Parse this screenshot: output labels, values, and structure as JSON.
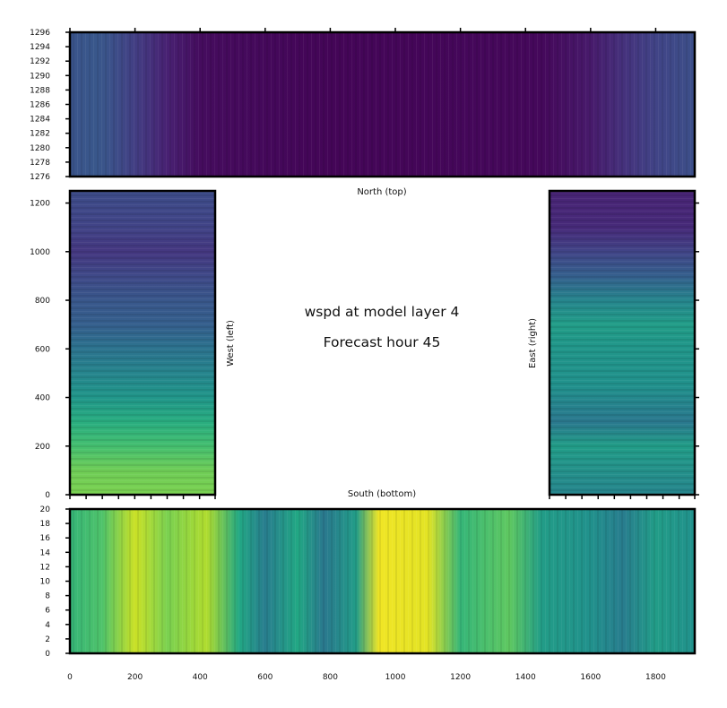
{
  "chart_data": {
    "type": "heatmap",
    "colormap": "viridis",
    "colors": {
      "low": "#440154",
      "mid": "#21918c",
      "high": "#fde725"
    },
    "title_lines": [
      "wspd at model layer 4",
      "Forecast hour 45"
    ],
    "panels": [
      {
        "id": "north",
        "label": "North (top)",
        "xlim": [
          0,
          1920
        ],
        "ylim": [
          1276,
          1296
        ],
        "xticks": [],
        "yticks": [
          "1276",
          "1278",
          "1280",
          "1282",
          "1284",
          "1286",
          "1288",
          "1290",
          "1292",
          "1294",
          "1296"
        ],
        "profile_along_x": [
          {
            "x": 0,
            "v": 0.26
          },
          {
            "x": 80,
            "v": 0.27
          },
          {
            "x": 120,
            "v": 0.25
          },
          {
            "x": 200,
            "v": 0.18
          },
          {
            "x": 300,
            "v": 0.09
          },
          {
            "x": 400,
            "v": 0.03
          },
          {
            "x": 800,
            "v": 0.01
          },
          {
            "x": 1450,
            "v": 0.02
          },
          {
            "x": 1600,
            "v": 0.07
          },
          {
            "x": 1700,
            "v": 0.14
          },
          {
            "x": 1800,
            "v": 0.2
          },
          {
            "x": 1920,
            "v": 0.24
          }
        ]
      },
      {
        "id": "west",
        "label": "West (left)",
        "xlim": [
          0,
          448
        ],
        "ylim": [
          0,
          1250
        ],
        "xticks": [],
        "yticks": [
          "0",
          "200",
          "400",
          "600",
          "800",
          "1000",
          "1200"
        ],
        "profile_along_y": [
          {
            "y": 0,
            "v": 0.8
          },
          {
            "y": 100,
            "v": 0.78
          },
          {
            "y": 200,
            "v": 0.7
          },
          {
            "y": 300,
            "v": 0.62
          },
          {
            "y": 400,
            "v": 0.52
          },
          {
            "y": 500,
            "v": 0.45
          },
          {
            "y": 600,
            "v": 0.38
          },
          {
            "y": 700,
            "v": 0.3
          },
          {
            "y": 800,
            "v": 0.27
          },
          {
            "y": 900,
            "v": 0.22
          },
          {
            "y": 1000,
            "v": 0.16
          },
          {
            "y": 1100,
            "v": 0.2
          },
          {
            "y": 1250,
            "v": 0.23
          }
        ]
      },
      {
        "id": "east",
        "label": "East (right)",
        "xlim": [
          0,
          448
        ],
        "ylim": [
          0,
          1250
        ],
        "xticks": [],
        "yticks": [],
        "profile_along_y": [
          {
            "y": 0,
            "v": 0.45
          },
          {
            "y": 200,
            "v": 0.55
          },
          {
            "y": 300,
            "v": 0.4
          },
          {
            "y": 450,
            "v": 0.5
          },
          {
            "y": 600,
            "v": 0.52
          },
          {
            "y": 700,
            "v": 0.55
          },
          {
            "y": 800,
            "v": 0.45
          },
          {
            "y": 900,
            "v": 0.3
          },
          {
            "y": 1000,
            "v": 0.2
          },
          {
            "y": 1100,
            "v": 0.12
          },
          {
            "y": 1250,
            "v": 0.1
          }
        ]
      },
      {
        "id": "south",
        "label": "South (bottom)",
        "xlim": [
          0,
          1920
        ],
        "ylim": [
          0,
          20
        ],
        "xticks": [
          "0",
          "200",
          "400",
          "600",
          "800",
          "1000",
          "1200",
          "1400",
          "1600",
          "1800"
        ],
        "yticks": [
          "0",
          "2",
          "4",
          "6",
          "8",
          "10",
          "12",
          "14",
          "16",
          "18",
          "20"
        ],
        "profile_along_x": [
          {
            "x": 0,
            "v": 0.66
          },
          {
            "x": 100,
            "v": 0.72
          },
          {
            "x": 200,
            "v": 0.92
          },
          {
            "x": 300,
            "v": 0.8
          },
          {
            "x": 420,
            "v": 0.88
          },
          {
            "x": 520,
            "v": 0.6
          },
          {
            "x": 600,
            "v": 0.42
          },
          {
            "x": 700,
            "v": 0.6
          },
          {
            "x": 780,
            "v": 0.4
          },
          {
            "x": 880,
            "v": 0.55
          },
          {
            "x": 950,
            "v": 0.98
          },
          {
            "x": 1100,
            "v": 0.96
          },
          {
            "x": 1200,
            "v": 0.66
          },
          {
            "x": 1350,
            "v": 0.75
          },
          {
            "x": 1450,
            "v": 0.55
          },
          {
            "x": 1600,
            "v": 0.5
          },
          {
            "x": 1700,
            "v": 0.42
          },
          {
            "x": 1800,
            "v": 0.55
          },
          {
            "x": 1920,
            "v": 0.5
          }
        ]
      }
    ]
  }
}
